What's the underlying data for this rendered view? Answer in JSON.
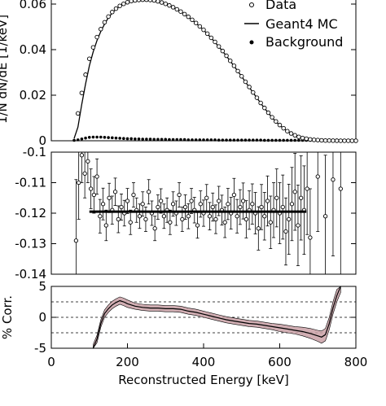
{
  "chart_data": [
    {
      "type": "line",
      "panel": "top",
      "ylim": [
        0,
        0.06
      ],
      "xlim": [
        0,
        800
      ],
      "ytick_labels": [
        "0.06",
        "0.04",
        "0.02",
        "0"
      ],
      "ytick_values": [
        0.06,
        0.04,
        0.02,
        0
      ],
      "ylabel_partial": "1/N dN/dE [1/keV]",
      "legend": {
        "placement": "top-right",
        "entries": [
          {
            "label": "Data",
            "marker": "open-circle"
          },
          {
            "label": "Geant4 MC",
            "marker": "line"
          },
          {
            "label": "Background",
            "marker": "filled-circle"
          }
        ]
      },
      "series": [
        {
          "name": "Data",
          "marker": "open-circle",
          "x": [
            70,
            80,
            90,
            100,
            110,
            120,
            130,
            140,
            150,
            160,
            170,
            180,
            190,
            200,
            210,
            220,
            230,
            240,
            250,
            260,
            270,
            280,
            290,
            300,
            310,
            320,
            330,
            340,
            350,
            360,
            370,
            380,
            390,
            400,
            410,
            420,
            430,
            440,
            450,
            460,
            470,
            480,
            490,
            500,
            510,
            520,
            530,
            540,
            550,
            560,
            570,
            580,
            590,
            600,
            610,
            620,
            630,
            640,
            650,
            660,
            670,
            680,
            690,
            700,
            710,
            720,
            730,
            740,
            750,
            760,
            770,
            780,
            790,
            800
          ],
          "y": [
            0.012,
            0.021,
            0.029,
            0.036,
            0.041,
            0.0455,
            0.049,
            0.052,
            0.0545,
            0.0565,
            0.058,
            0.0592,
            0.0601,
            0.0608,
            0.0613,
            0.0616,
            0.0618,
            0.0619,
            0.0619,
            0.0618,
            0.0616,
            0.0612,
            0.0607,
            0.0601,
            0.0594,
            0.0586,
            0.0577,
            0.0567,
            0.0556,
            0.0544,
            0.0531,
            0.0517,
            0.0502,
            0.0487,
            0.047,
            0.0452,
            0.0434,
            0.0414,
            0.0394,
            0.0373,
            0.0351,
            0.0329,
            0.0306,
            0.0283,
            0.0259,
            0.0236,
            0.0212,
            0.0189,
            0.0166,
            0.0144,
            0.0123,
            0.0103,
            0.0085,
            0.0069,
            0.0055,
            0.0042,
            0.0032,
            0.0024,
            0.0017,
            0.0012,
            0.0009,
            0.0006,
            0.0004,
            0.0003,
            0.0002,
            0.0001,
            0.0001,
            5e-05,
            3e-05,
            2e-05,
            1e-05,
            1e-05,
            0.0,
            0.0
          ]
        },
        {
          "name": "Geant4 MC",
          "marker": "line",
          "x": [
            60,
            70,
            80,
            90,
            100,
            110,
            120,
            130,
            140,
            150,
            160,
            170,
            180,
            190,
            200,
            210,
            220,
            230,
            240,
            250,
            260,
            270,
            280,
            290,
            300,
            310,
            320,
            330,
            340,
            350,
            360,
            370,
            380,
            390,
            400,
            410,
            420,
            430,
            440,
            450,
            460,
            470,
            480,
            490,
            500,
            510,
            520,
            530,
            540,
            550,
            560,
            570,
            580,
            590,
            600,
            610,
            620,
            630,
            640,
            650,
            660,
            670,
            680,
            690,
            700,
            710,
            720,
            730,
            740,
            750,
            760,
            770,
            780,
            790,
            800
          ],
          "y": [
            0.001,
            0.006,
            0.016,
            0.025,
            0.033,
            0.039,
            0.044,
            0.048,
            0.0512,
            0.054,
            0.0561,
            0.0578,
            0.0591,
            0.06,
            0.0607,
            0.0612,
            0.0615,
            0.0617,
            0.0618,
            0.0618,
            0.0617,
            0.0615,
            0.0611,
            0.0606,
            0.06,
            0.0593,
            0.0585,
            0.0576,
            0.0566,
            0.0555,
            0.0543,
            0.053,
            0.0516,
            0.0501,
            0.0486,
            0.0469,
            0.0451,
            0.0433,
            0.0413,
            0.0393,
            0.0372,
            0.035,
            0.0328,
            0.0305,
            0.0282,
            0.0258,
            0.0235,
            0.0211,
            0.0188,
            0.0165,
            0.0143,
            0.0122,
            0.0102,
            0.0084,
            0.0068,
            0.0054,
            0.0041,
            0.0031,
            0.0023,
            0.0016,
            0.0011,
            0.0008,
            0.0005,
            0.0003,
            0.0002,
            0.0001,
            0.0001,
            5e-05,
            3e-05,
            2e-05,
            1e-05,
            1e-05,
            0.0,
            0.0,
            0.0
          ]
        },
        {
          "name": "Background",
          "marker": "filled-circle",
          "x": [
            60,
            70,
            80,
            90,
            100,
            110,
            120,
            130,
            140,
            150,
            160,
            170,
            180,
            190,
            200,
            210,
            220,
            230,
            240,
            250,
            260,
            270,
            280,
            290,
            300,
            310,
            320,
            330,
            340,
            350,
            360,
            370,
            380,
            390,
            400,
            410,
            420,
            430,
            440,
            450,
            460,
            470,
            480,
            490,
            500,
            510,
            520,
            530,
            540,
            550,
            560,
            570,
            580,
            590,
            600,
            610,
            620,
            630,
            640,
            650,
            660,
            670,
            680,
            690,
            700,
            710,
            720,
            730,
            740,
            750,
            760,
            770,
            780,
            790
          ],
          "y": [
            0.0002,
            0.0004,
            0.0008,
            0.0012,
            0.0015,
            0.0016,
            0.0016,
            0.0016,
            0.0015,
            0.0014,
            0.0013,
            0.0012,
            0.0011,
            0.001,
            0.0009,
            0.0009,
            0.0008,
            0.0008,
            0.0007,
            0.0007,
            0.0007,
            0.0006,
            0.0006,
            0.0006,
            0.0006,
            0.0005,
            0.0005,
            0.0005,
            0.0005,
            0.0005,
            0.0004,
            0.0004,
            0.0004,
            0.0004,
            0.0004,
            0.0004,
            0.0004,
            0.0004,
            0.0003,
            0.0003,
            0.0003,
            0.0003,
            0.0003,
            0.0003,
            0.0003,
            0.0003,
            0.0003,
            0.0003,
            0.0003,
            0.0003,
            0.0002,
            0.0002,
            0.0002,
            0.0002,
            0.0002,
            0.0002,
            0.0002,
            0.0002,
            0.0002,
            0.0002,
            0.0002,
            0.0002,
            0.0002,
            0.0002,
            0.0002,
            0.0001,
            0.0001,
            0.0001,
            0.0001,
            0.0001,
            0.0001,
            0.0001,
            0.0001,
            0.0001
          ]
        }
      ]
    },
    {
      "type": "scatter",
      "panel": "middle",
      "ylim": [
        -0.14,
        -0.1
      ],
      "xlim": [
        0,
        800
      ],
      "ytick_labels": [
        "-0.1",
        "-0.11",
        "-0.12",
        "-0.13",
        "-0.14"
      ],
      "ytick_values": [
        -0.1,
        -0.11,
        -0.12,
        -0.13,
        -0.14
      ],
      "fit_line": {
        "x": [
          100,
          670
        ],
        "y": -0.1195
      },
      "points": {
        "x": [
          65,
          72,
          80,
          88,
          96,
          104,
          112,
          120,
          128,
          136,
          144,
          152,
          160,
          168,
          176,
          184,
          192,
          200,
          208,
          216,
          224,
          232,
          240,
          248,
          256,
          264,
          272,
          280,
          288,
          296,
          304,
          312,
          320,
          328,
          336,
          344,
          352,
          360,
          368,
          376,
          384,
          392,
          400,
          408,
          416,
          424,
          432,
          440,
          448,
          456,
          464,
          472,
          480,
          488,
          496,
          504,
          512,
          520,
          528,
          536,
          544,
          552,
          560,
          568,
          576,
          584,
          592,
          600,
          608,
          616,
          624,
          632,
          640,
          648,
          656,
          664,
          672,
          680,
          700,
          720,
          740,
          760
        ],
        "y": [
          -0.129,
          -0.11,
          -0.101,
          -0.107,
          -0.103,
          -0.112,
          -0.114,
          -0.108,
          -0.121,
          -0.117,
          -0.124,
          -0.115,
          -0.119,
          -0.113,
          -0.122,
          -0.118,
          -0.12,
          -0.116,
          -0.123,
          -0.114,
          -0.119,
          -0.121,
          -0.117,
          -0.122,
          -0.113,
          -0.12,
          -0.125,
          -0.118,
          -0.116,
          -0.121,
          -0.119,
          -0.123,
          -0.117,
          -0.12,
          -0.114,
          -0.122,
          -0.118,
          -0.121,
          -0.116,
          -0.119,
          -0.124,
          -0.117,
          -0.12,
          -0.115,
          -0.121,
          -0.118,
          -0.122,
          -0.116,
          -0.119,
          -0.123,
          -0.117,
          -0.12,
          -0.114,
          -0.121,
          -0.118,
          -0.116,
          -0.122,
          -0.119,
          -0.117,
          -0.12,
          -0.125,
          -0.118,
          -0.121,
          -0.116,
          -0.123,
          -0.119,
          -0.115,
          -0.12,
          -0.118,
          -0.126,
          -0.122,
          -0.117,
          -0.113,
          -0.124,
          -0.115,
          -0.119,
          -0.112,
          -0.128,
          -0.108,
          -0.121,
          -0.109,
          -0.112
        ],
        "yerr": [
          0.02,
          0.012,
          0.009,
          0.008,
          0.007,
          0.0065,
          0.006,
          0.0058,
          0.0055,
          0.0052,
          0.005,
          0.0048,
          0.0046,
          0.0045,
          0.0044,
          0.0043,
          0.0042,
          0.0041,
          0.004,
          0.004,
          0.004,
          0.004,
          0.004,
          0.004,
          0.004,
          0.004,
          0.004,
          0.004,
          0.004,
          0.004,
          0.004,
          0.004,
          0.004,
          0.004,
          0.004,
          0.004,
          0.004,
          0.0041,
          0.0041,
          0.0042,
          0.0042,
          0.0043,
          0.0043,
          0.0044,
          0.0045,
          0.0046,
          0.0047,
          0.0048,
          0.0049,
          0.005,
          0.0051,
          0.0052,
          0.0054,
          0.0055,
          0.0057,
          0.0059,
          0.0061,
          0.0063,
          0.0066,
          0.0068,
          0.0071,
          0.0074,
          0.0078,
          0.0082,
          0.0086,
          0.009,
          0.0095,
          0.01,
          0.0105,
          0.011,
          0.0115,
          0.012,
          0.0126,
          0.0132,
          0.0138,
          0.0145,
          0.015,
          0.016,
          0.018,
          0.02,
          0.025,
          0.03
        ]
      }
    },
    {
      "type": "area",
      "panel": "bottom",
      "ylim": [
        -5,
        5
      ],
      "xlim": [
        0,
        800
      ],
      "ylabel": "% Corr.",
      "xlabel": "Reconstructed Energy [keV]",
      "ytick_labels": [
        "5",
        "0",
        "-5"
      ],
      "ytick_values": [
        5,
        0,
        -5
      ],
      "xtick_labels": [
        "0",
        "200",
        "400",
        "600",
        "800"
      ],
      "xtick_values": [
        0,
        200,
        400,
        600,
        800
      ],
      "dashed_lines_y": [
        2.5,
        0,
        -2.5
      ],
      "band": {
        "x": [
          110,
          120,
          130,
          140,
          150,
          160,
          170,
          180,
          190,
          200,
          220,
          240,
          260,
          280,
          300,
          320,
          340,
          360,
          380,
          400,
          420,
          440,
          460,
          480,
          500,
          520,
          540,
          560,
          580,
          600,
          620,
          640,
          660,
          680,
          700,
          710,
          720,
          730,
          740,
          750,
          760
        ],
        "center": [
          -5,
          -3.5,
          -1,
          0.6,
          1.4,
          2.0,
          2.4,
          2.7,
          2.5,
          2.2,
          1.8,
          1.6,
          1.5,
          1.5,
          1.4,
          1.4,
          1.3,
          1.0,
          0.8,
          0.5,
          0.2,
          -0.1,
          -0.4,
          -0.6,
          -0.8,
          -1.0,
          -1.1,
          -1.3,
          -1.5,
          -1.7,
          -1.9,
          -2.1,
          -2.3,
          -2.6,
          -3.0,
          -3.2,
          -2.8,
          -1.0,
          1.5,
          3.5,
          5.0
        ],
        "halfwidth": [
          0.6,
          0.6,
          0.6,
          0.6,
          0.6,
          0.6,
          0.6,
          0.6,
          0.6,
          0.6,
          0.5,
          0.5,
          0.5,
          0.5,
          0.5,
          0.5,
          0.5,
          0.5,
          0.5,
          0.5,
          0.5,
          0.5,
          0.5,
          0.5,
          0.5,
          0.5,
          0.5,
          0.5,
          0.5,
          0.6,
          0.6,
          0.6,
          0.7,
          0.8,
          0.9,
          1.0,
          1.0,
          1.0,
          1.0,
          1.0,
          1.0
        ]
      }
    }
  ]
}
